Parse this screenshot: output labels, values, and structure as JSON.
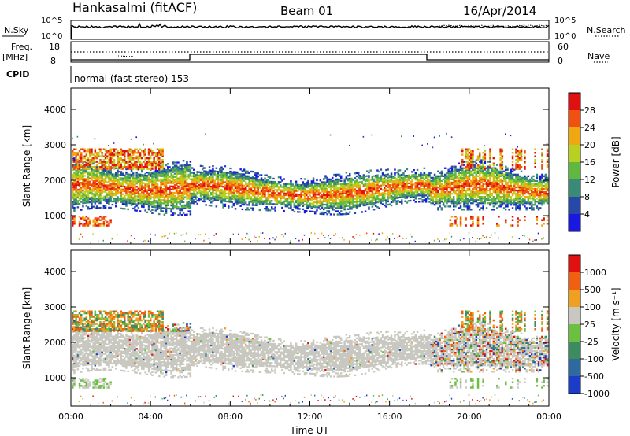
{
  "header": {
    "station": "Hankasalmi (fitACF)",
    "beam": "Beam 01",
    "date": "16/Apr/2014"
  },
  "noise_panel": {
    "left_label": "N.Sky",
    "right_label": "N.Search",
    "left_ticks": [
      "10^5",
      "10^0"
    ],
    "right_ticks": [
      "10^5",
      "10^0"
    ]
  },
  "freq_panel": {
    "left_label_1": "Freq.",
    "left_label_2": "[MHz]",
    "left_ticks": [
      "18",
      "8"
    ],
    "right_label": "Nave",
    "right_ticks": [
      "60",
      "0"
    ]
  },
  "cpid": {
    "label": "CPID",
    "value": "normal (fast stereo) 153"
  },
  "chart_data": [
    {
      "type": "heatmap",
      "name": "power",
      "ylabel": "Slant Range [km]",
      "xlabel": "",
      "ylim": [
        200,
        4600
      ],
      "yticks": [
        "1000",
        "2000",
        "3000",
        "4000"
      ],
      "xtick_values": [
        0,
        4,
        8,
        12,
        16,
        20,
        24
      ],
      "colorbar_label": "Power [dB]",
      "colorbar_ticks": [
        "4",
        "8",
        "12",
        "16",
        "20",
        "24",
        "28"
      ],
      "colorbar_range": [
        0,
        32
      ],
      "colors": [
        "#1818e0",
        "#2848a8",
        "#3a8a78",
        "#60b840",
        "#b8d020",
        "#f0a810",
        "#f05010",
        "#e01010"
      ]
    },
    {
      "type": "heatmap",
      "name": "velocity",
      "ylabel": "Slant Range [km]",
      "xlabel": "Time UT",
      "ylim": [
        200,
        4600
      ],
      "yticks": [
        "1000",
        "2000",
        "3000",
        "4000"
      ],
      "xticks": [
        "00:00",
        "04:00",
        "08:00",
        "12:00",
        "16:00",
        "20:00",
        "00:00"
      ],
      "xtick_values": [
        0,
        4,
        8,
        12,
        16,
        20,
        24
      ],
      "colorbar_label": "Velocity [m s⁻¹]",
      "colorbar_ticks": [
        "1000",
        "500",
        "100",
        "25",
        "-25",
        "-100",
        "-500",
        "-1000"
      ],
      "colors": [
        "#1a3cc8",
        "#2e6aa0",
        "#3c8c60",
        "#6cc040",
        "#c8c8c0",
        "#f0a020",
        "#f06010",
        "#e01010"
      ]
    }
  ]
}
